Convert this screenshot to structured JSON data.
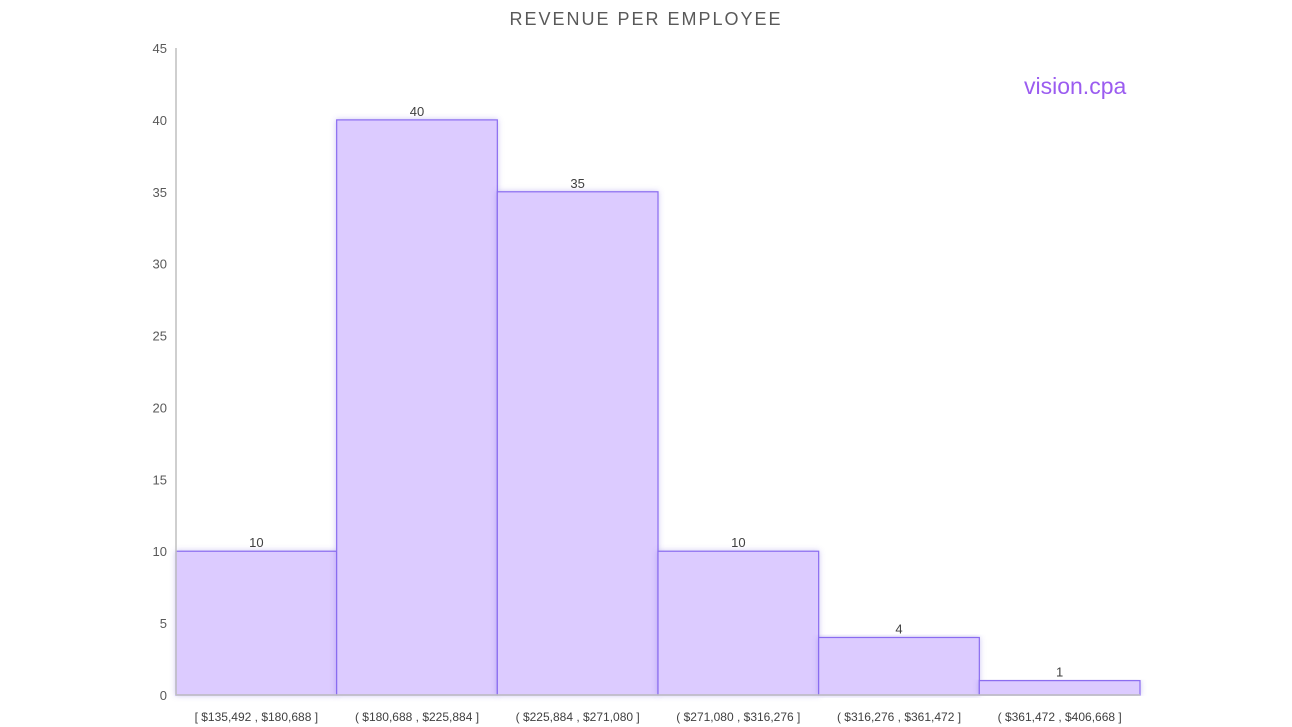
{
  "chart_data": {
    "type": "bar",
    "title": "REVENUE PER EMPLOYEE",
    "categories": [
      "[ $135,492 ,  $180,688 ]",
      "( $180,688 ,  $225,884 ]",
      "( $225,884 ,  $271,080 ]",
      "( $271,080 ,  $316,276 ]",
      "( $316,276 ,  $361,472 ]",
      "( $361,472 ,  $406,668 ]"
    ],
    "values": [
      10,
      40,
      35,
      10,
      4,
      1
    ],
    "ylim": [
      0,
      45
    ],
    "yticks": [
      0,
      5,
      10,
      15,
      20,
      25,
      30,
      35,
      40,
      45
    ],
    "xlabel": "",
    "ylabel": "",
    "grid": false,
    "legend": "none",
    "bar_fill": "#dccbff",
    "bar_stroke": "#8a6cf0",
    "axis_color": "#bfbfbf"
  },
  "watermark": "vision.cpa",
  "watermark_color": "#9b5cf0"
}
